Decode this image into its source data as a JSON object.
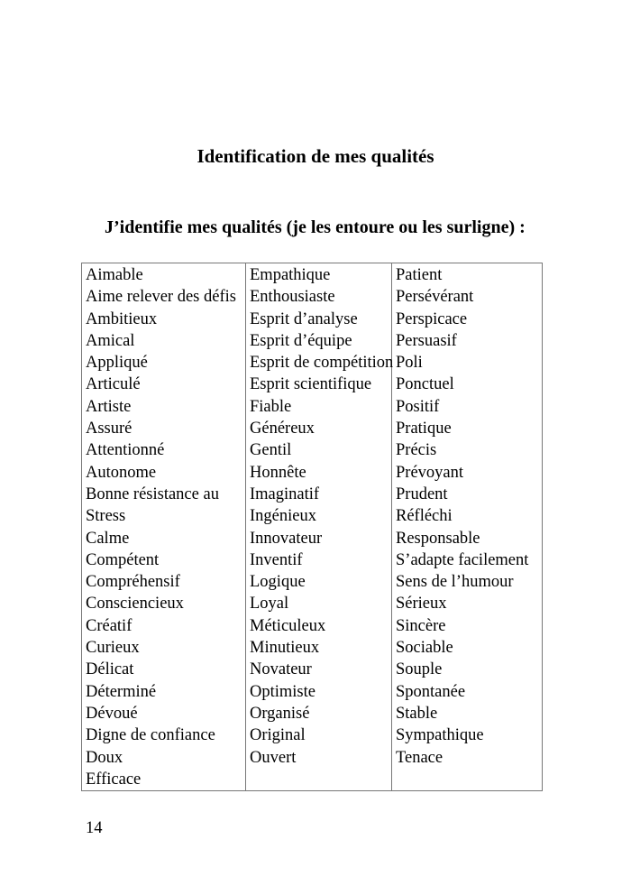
{
  "document": {
    "title": "Identification de mes qualités",
    "instruction": "J’identifie mes qualités (je les entoure ou les surligne) :",
    "page_number": "14"
  },
  "qualities_table": {
    "columns": [
      {
        "items": [
          "Aimable",
          "Aime relever des défis",
          "Ambitieux",
          "Amical",
          "Appliqué",
          "Articulé",
          "Artiste",
          "Assuré",
          "Attentionné",
          "Autonome",
          "Bonne résistance au Stress",
          "Calme",
          "Compétent",
          "Compréhensif",
          "Consciencieux",
          "Créatif",
          "Curieux",
          "Délicat",
          "Déterminé",
          "Dévoué",
          "Digne de confiance",
          "Doux",
          "Efficace"
        ]
      },
      {
        "items": [
          "Empathique",
          "Enthousiaste",
          "Esprit d’analyse",
          "Esprit d’équipe",
          "Esprit de compétition",
          "Esprit scientifique",
          "Fiable",
          "Généreux",
          "Gentil",
          "Honnête",
          "Imaginatif",
          "Ingénieux",
          "Innovateur",
          "Inventif",
          "Logique",
          "Loyal",
          "Méticuleux",
          "Minutieux",
          "Novateur",
          "Optimiste",
          "Organisé",
          "Original",
          "Ouvert"
        ]
      },
      {
        "items": [
          "Patient",
          "Persévérant",
          "Perspicace",
          "Persuasif",
          "Poli",
          "Ponctuel",
          "Positif",
          "Pratique",
          "Précis",
          "Prévoyant",
          "Prudent",
          "Réfléchi",
          "Responsable",
          "S’adapte facilement",
          "Sens de l’humour",
          "Sérieux",
          "Sincère",
          "Sociable",
          "Souple",
          "Spontanée",
          "Stable",
          "Sympathique",
          "Tenace"
        ]
      }
    ]
  }
}
